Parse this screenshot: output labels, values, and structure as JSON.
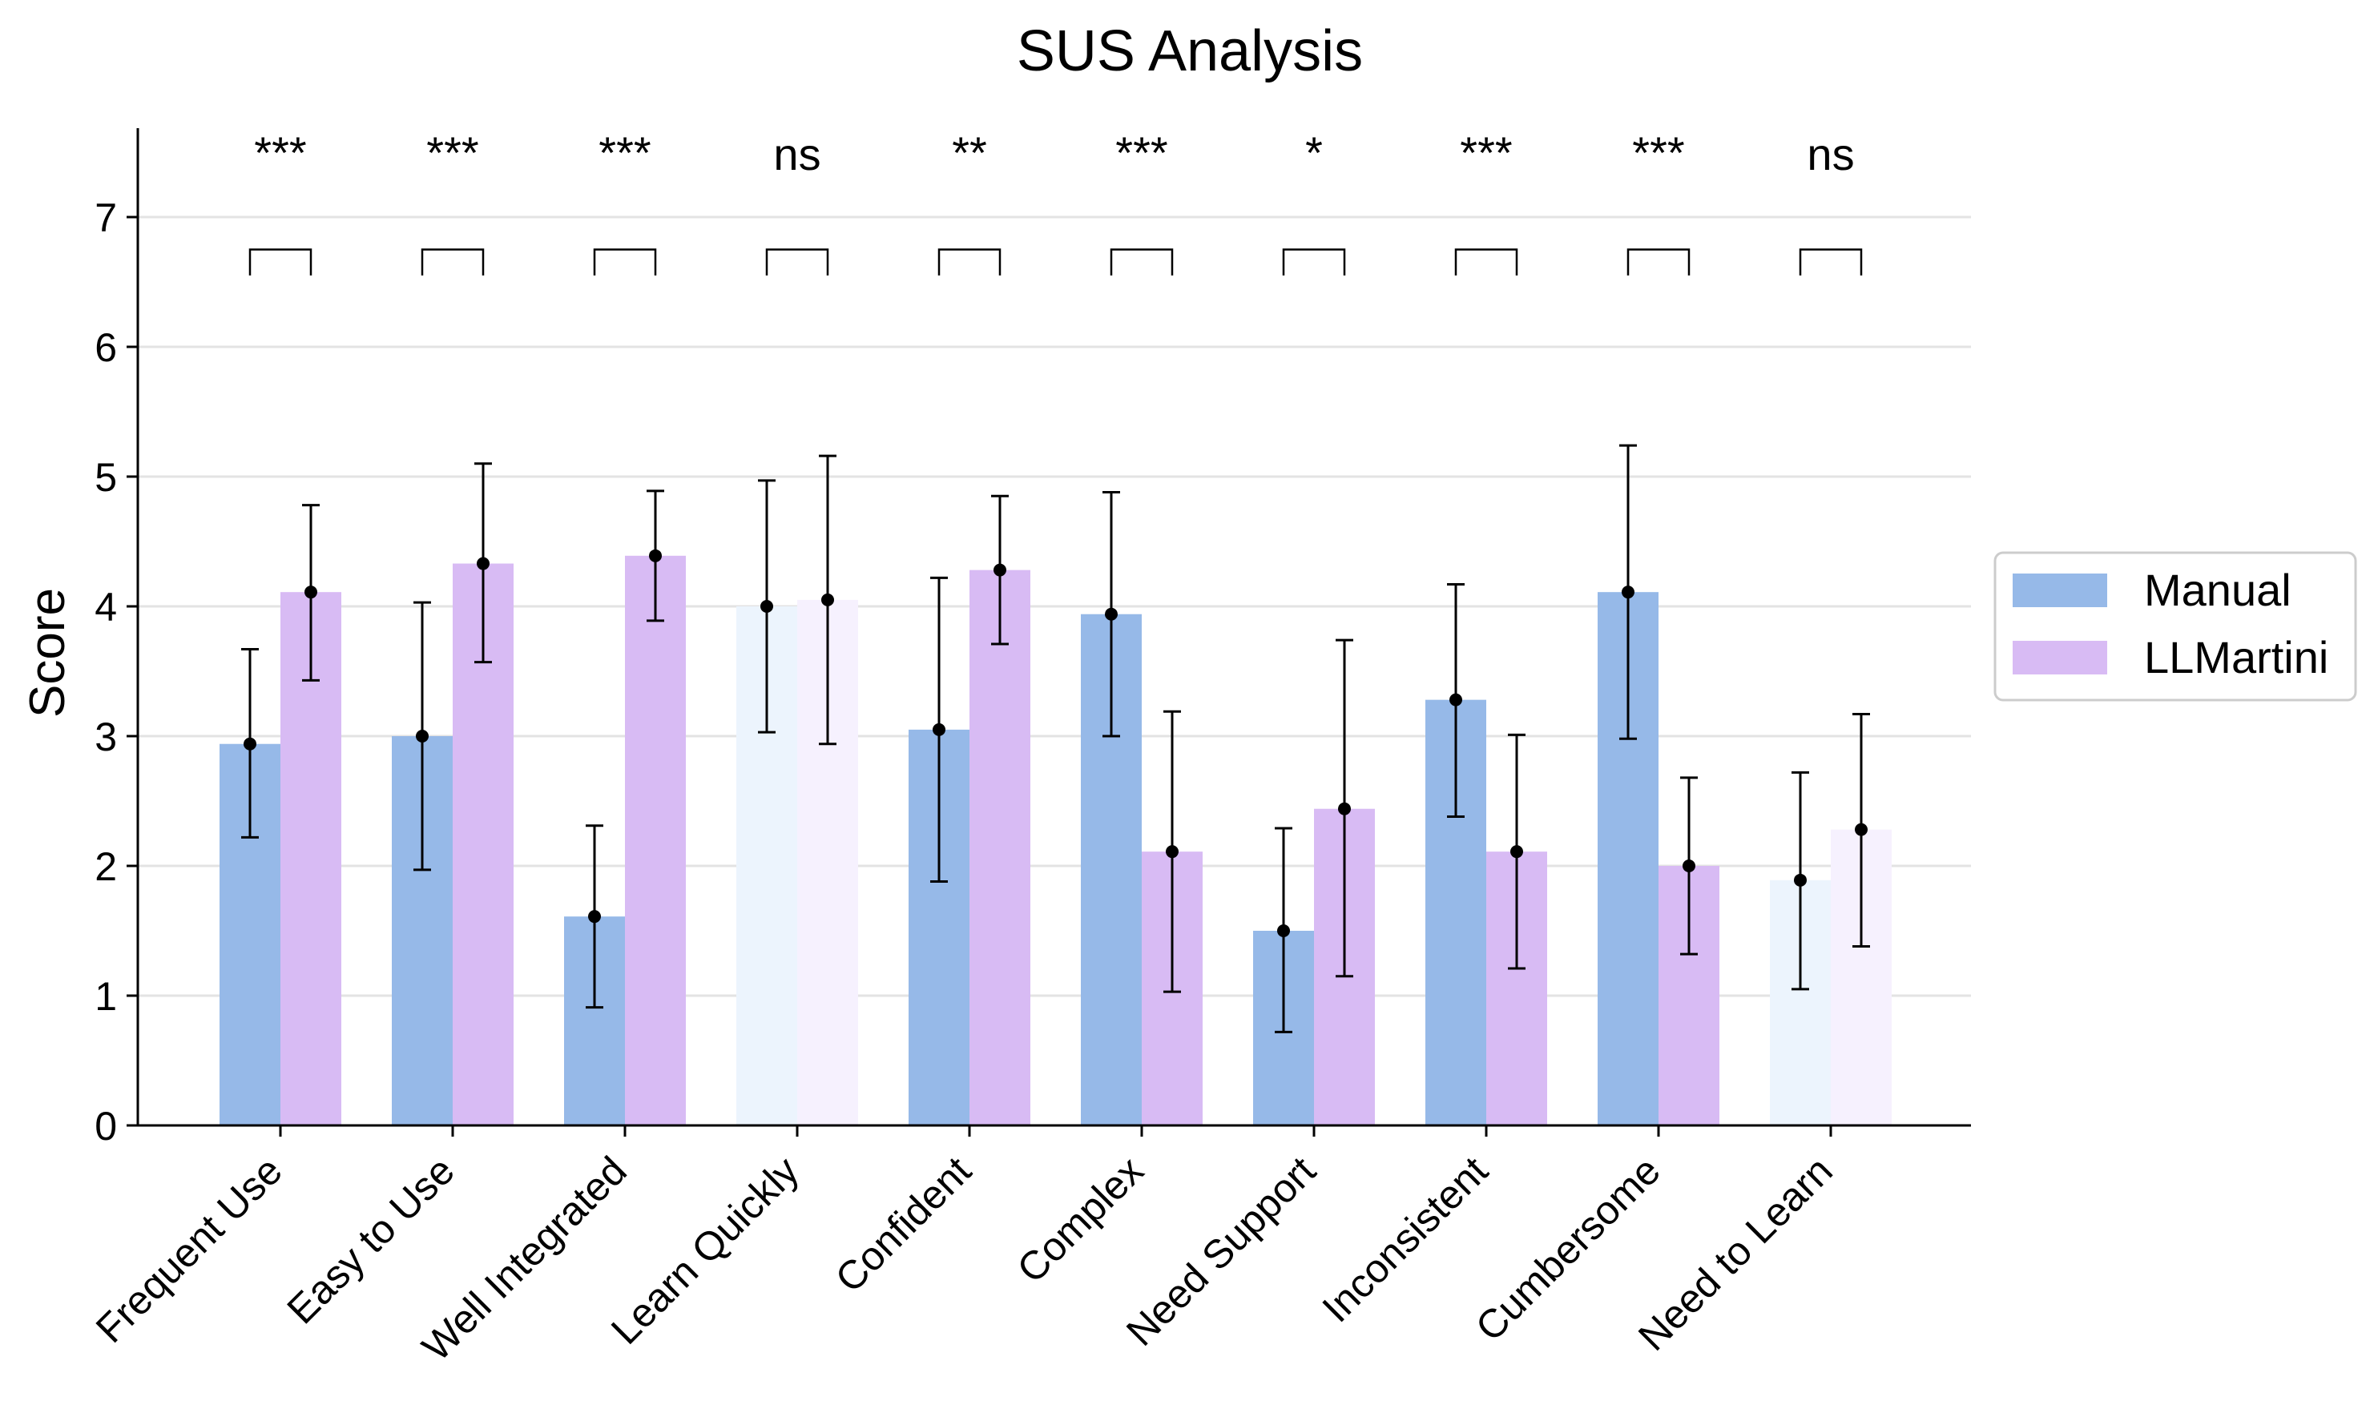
{
  "chart_data": {
    "type": "bar",
    "title": "SUS Analysis",
    "xlabel": "",
    "ylabel": "Score",
    "ylim": [
      0,
      7.7
    ],
    "yticks": [
      0,
      1,
      2,
      3,
      4,
      5,
      6,
      7
    ],
    "grid": true,
    "legend_position": "right",
    "categories": [
      "Frequent Use",
      "Easy to Use",
      "Well Integrated",
      "Learn Quickly",
      "Confident",
      "Complex",
      "Need Support",
      "Inconsistent",
      "Cumbersome",
      "Need to Learn"
    ],
    "series": [
      {
        "name": "Manual",
        "color": "#96b9e8",
        "faded_color": "#ecf4fd",
        "values": [
          2.94,
          3.0,
          1.61,
          4.0,
          3.05,
          3.94,
          1.5,
          3.28,
          4.11,
          1.89
        ],
        "error_low": [
          2.22,
          1.97,
          0.91,
          3.03,
          1.88,
          3.0,
          0.72,
          2.38,
          2.98,
          1.05
        ],
        "error_high": [
          3.67,
          4.03,
          2.31,
          4.97,
          4.22,
          4.88,
          2.29,
          4.17,
          5.24,
          2.72
        ]
      },
      {
        "name": "LLMartini",
        "color": "#d8bbf4",
        "faded_color": "#f6f1fe",
        "values": [
          4.11,
          4.33,
          4.39,
          4.05,
          4.28,
          2.11,
          2.44,
          2.11,
          2.0,
          2.28
        ],
        "error_low": [
          3.43,
          3.57,
          3.89,
          2.94,
          3.71,
          1.03,
          1.15,
          1.21,
          1.32,
          1.38
        ],
        "error_high": [
          4.78,
          5.1,
          4.89,
          5.16,
          4.85,
          3.19,
          3.74,
          3.01,
          2.68,
          3.17
        ]
      }
    ],
    "significance": [
      "***",
      "***",
      "***",
      "ns",
      "**",
      "***",
      "*",
      "***",
      "***",
      "ns"
    ],
    "faded_categories": [
      "Learn Quickly",
      "Need to Learn"
    ]
  }
}
